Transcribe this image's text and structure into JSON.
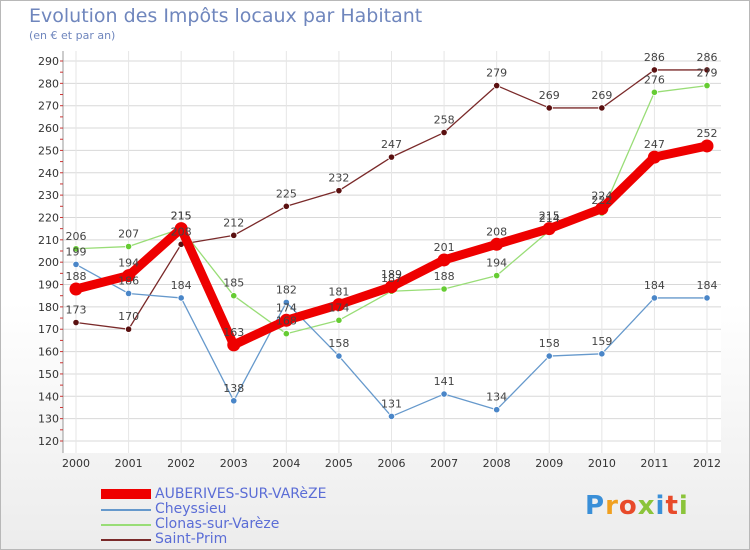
{
  "chart_data": {
    "type": "line",
    "title": "Evolution des Impôts locaux par Habitant",
    "subtitle": "(en € et par an)",
    "categories": [
      "2000",
      "2001",
      "2002",
      "2003",
      "2004",
      "2005",
      "2006",
      "2007",
      "2008",
      "2009",
      "2010",
      "2011",
      "2012"
    ],
    "ylim": [
      120,
      290
    ],
    "yticks": [
      120,
      130,
      140,
      150,
      160,
      170,
      180,
      190,
      200,
      210,
      220,
      230,
      240,
      250,
      260,
      270,
      280,
      290
    ],
    "grid": true,
    "series": [
      {
        "name": "AUBERIVES-SUR-VARèZE",
        "color": "#ee0000",
        "marker": "#ee0000",
        "values": [
          188,
          194,
          215,
          163,
          174,
          181,
          189,
          201,
          208,
          215,
          224,
          247,
          252
        ]
      },
      {
        "name": "Cheyssieu",
        "color": "#6699cc",
        "marker": "#4a86c8",
        "values": [
          199,
          186,
          184,
          138,
          182,
          158,
          131,
          141,
          134,
          158,
          159,
          184,
          184
        ]
      },
      {
        "name": "Clonas-sur-Varèze",
        "color": "#99dd77",
        "marker": "#66cc33",
        "values": [
          206,
          207,
          215,
          185,
          168,
          174,
          187,
          188,
          194,
          214,
          222,
          276,
          279
        ]
      },
      {
        "name": "Saint-Prim",
        "color": "#7a2a2a",
        "marker": "#5a1010",
        "values": [
          173,
          170,
          208,
          212,
          225,
          232,
          247,
          258,
          279,
          269,
          269,
          286,
          286
        ]
      }
    ]
  },
  "legend": {
    "items": [
      {
        "label": "AUBERIVES-SUR-VARèZE",
        "color": "#ee0000"
      },
      {
        "label": "Cheyssieu",
        "color": "#6699cc"
      },
      {
        "label": "Clonas-sur-Varèze",
        "color": "#99dd77"
      },
      {
        "label": "Saint-Prim",
        "color": "#7a2a2a"
      }
    ]
  },
  "logo": {
    "text": "Proxiti"
  }
}
